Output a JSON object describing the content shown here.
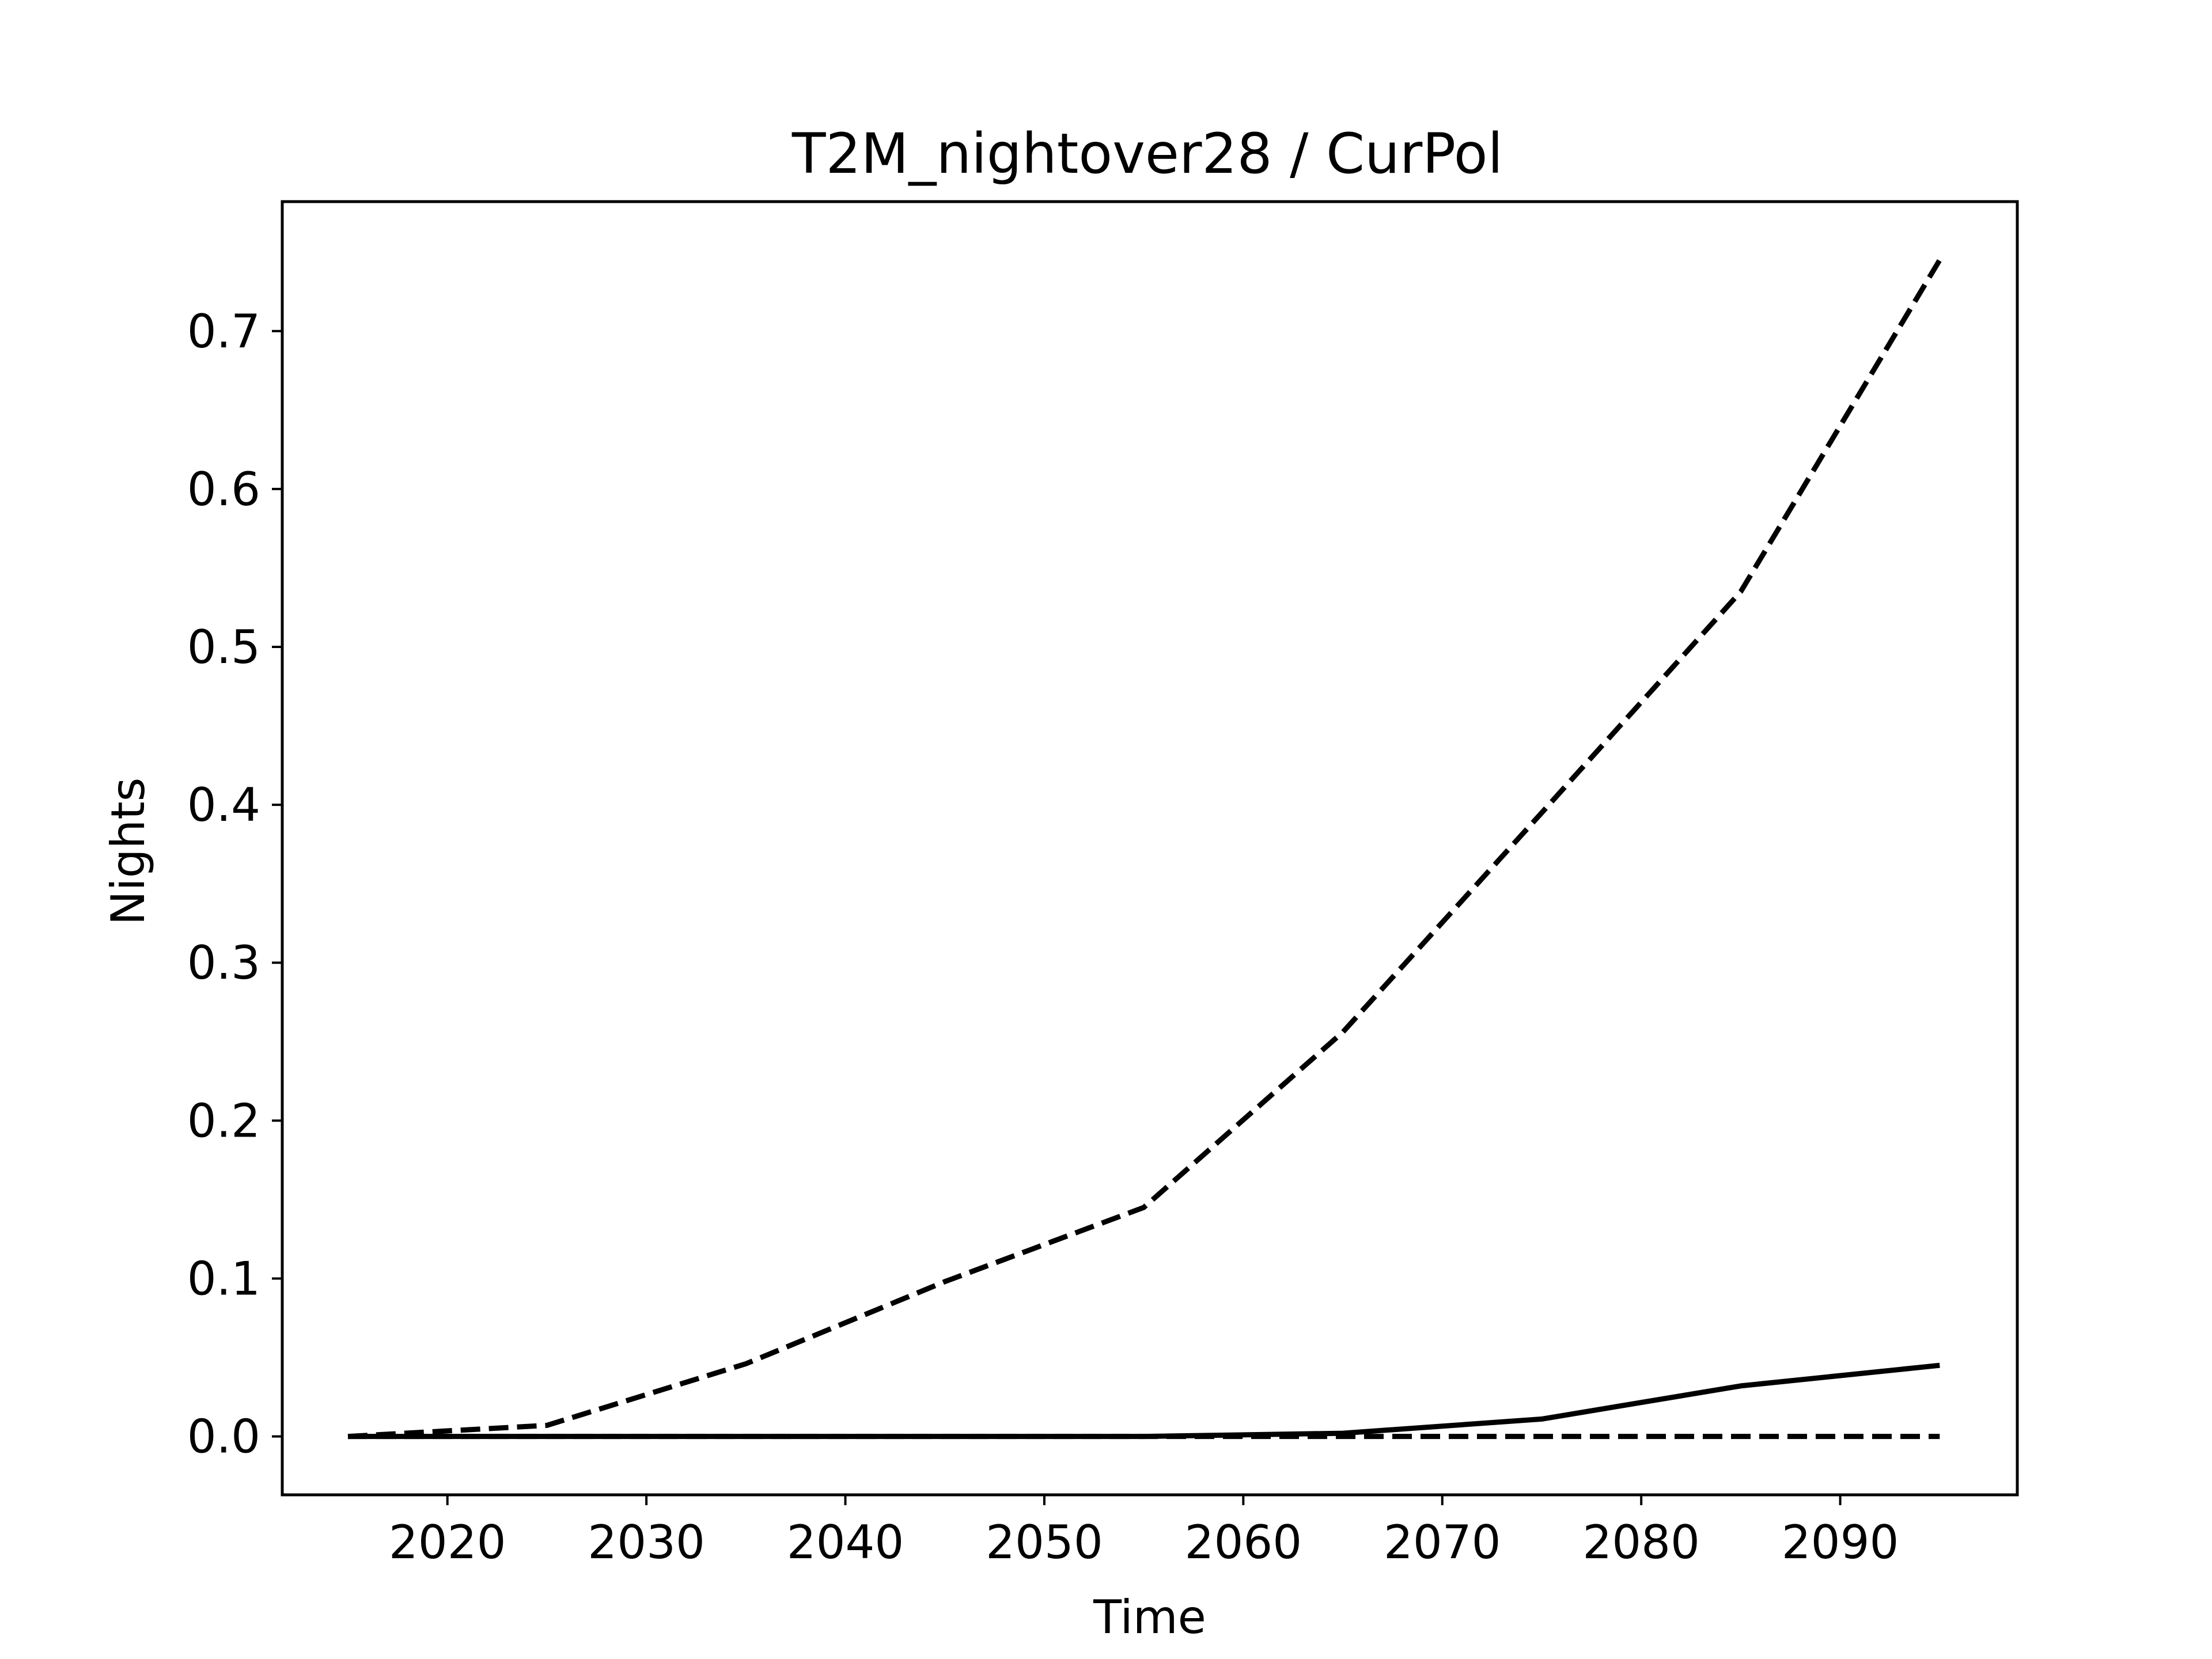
{
  "chart_data": {
    "type": "line",
    "title": "T2M_nightover28 / CurPol",
    "xlabel": "Time",
    "ylabel": "Nights",
    "xlim": [
      2011.7,
      2098.9
    ],
    "ylim": [
      -0.037,
      0.782
    ],
    "xticks": [
      2020,
      2030,
      2040,
      2050,
      2060,
      2070,
      2080,
      2090
    ],
    "xtick_labels": [
      "2020",
      "2030",
      "2040",
      "2050",
      "2060",
      "2070",
      "2080",
      "2090"
    ],
    "yticks": [
      0.0,
      0.1,
      0.2,
      0.3,
      0.4,
      0.5,
      0.6,
      0.7
    ],
    "ytick_labels": [
      "0.0",
      "0.1",
      "0.2",
      "0.3",
      "0.4",
      "0.5",
      "0.6",
      "0.7"
    ],
    "grid": false,
    "legend": "none",
    "x": [
      2015,
      2025,
      2035,
      2045,
      2055,
      2065,
      2075,
      2085,
      2095
    ],
    "series": [
      {
        "style": "dashed",
        "color": "#000000",
        "values": [
          0.0,
          0.007,
          0.046,
          0.098,
          0.145,
          0.256,
          0.395,
          0.535,
          0.745
        ]
      },
      {
        "style": "solid",
        "color": "#000000",
        "values": [
          0.0,
          0.0,
          0.0,
          0.0,
          0.0,
          0.002,
          0.011,
          0.032,
          0.045
        ]
      },
      {
        "style": "dashed",
        "color": "#000000",
        "values": [
          0.0,
          0.0,
          0.0,
          0.0,
          0.0,
          0.0,
          0.0,
          0.0,
          0.0
        ]
      }
    ]
  }
}
